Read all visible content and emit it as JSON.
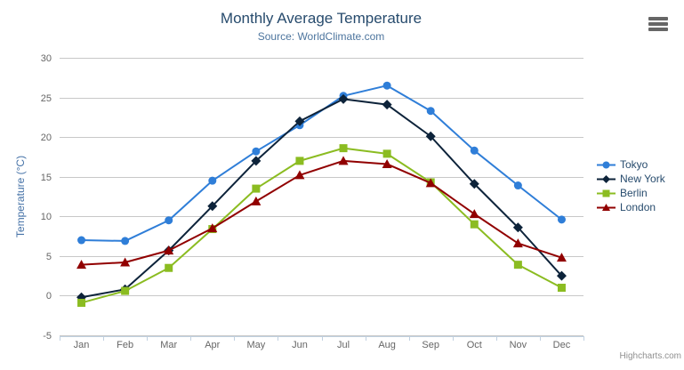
{
  "chart": {
    "title": "Monthly Average Temperature",
    "subtitle": "Source: WorldClimate.com",
    "credits": "Highcharts.com",
    "export_menu_icon": "hamburger-icon"
  },
  "chart_data": {
    "type": "line",
    "title": "Monthly Average Temperature",
    "subtitle": "Source: WorldClimate.com",
    "categories": [
      "Jan",
      "Feb",
      "Mar",
      "Apr",
      "May",
      "Jun",
      "Jul",
      "Aug",
      "Sep",
      "Oct",
      "Nov",
      "Dec"
    ],
    "series": [
      {
        "name": "Tokyo",
        "color": "#2f7ed8",
        "marker": "circle",
        "values": [
          7.0,
          6.9,
          9.5,
          14.5,
          18.2,
          21.5,
          25.2,
          26.5,
          23.3,
          18.3,
          13.9,
          9.6
        ]
      },
      {
        "name": "New York",
        "color": "#0d233a",
        "marker": "diamond",
        "values": [
          -0.2,
          0.8,
          5.7,
          11.3,
          17.0,
          22.0,
          24.8,
          24.1,
          20.1,
          14.1,
          8.6,
          2.5
        ]
      },
      {
        "name": "Berlin",
        "color": "#8bbc21",
        "marker": "square",
        "values": [
          -0.9,
          0.6,
          3.5,
          8.4,
          13.5,
          17.0,
          18.6,
          17.9,
          14.3,
          9.0,
          3.9,
          1.0
        ]
      },
      {
        "name": "London",
        "color": "#910000",
        "marker": "triangle",
        "values": [
          3.9,
          4.2,
          5.7,
          8.5,
          11.9,
          15.2,
          17.0,
          16.6,
          14.2,
          10.3,
          6.6,
          4.8
        ]
      }
    ],
    "xlabel": "",
    "ylabel": "Temperature (°C)",
    "ylim": [
      -5,
      30
    ],
    "ytick_step": 5,
    "grid": "horizontal",
    "legend_position": "right"
  },
  "colors": {
    "grid": "#c8c8c8",
    "axis_line": "#c0d0e0",
    "tick_label": "#666666",
    "title": "#274b6d",
    "subtitle": "#4d759e",
    "yaxis_title": "#4572a7",
    "legend_text": "#274b6d",
    "credits": "#909090"
  }
}
